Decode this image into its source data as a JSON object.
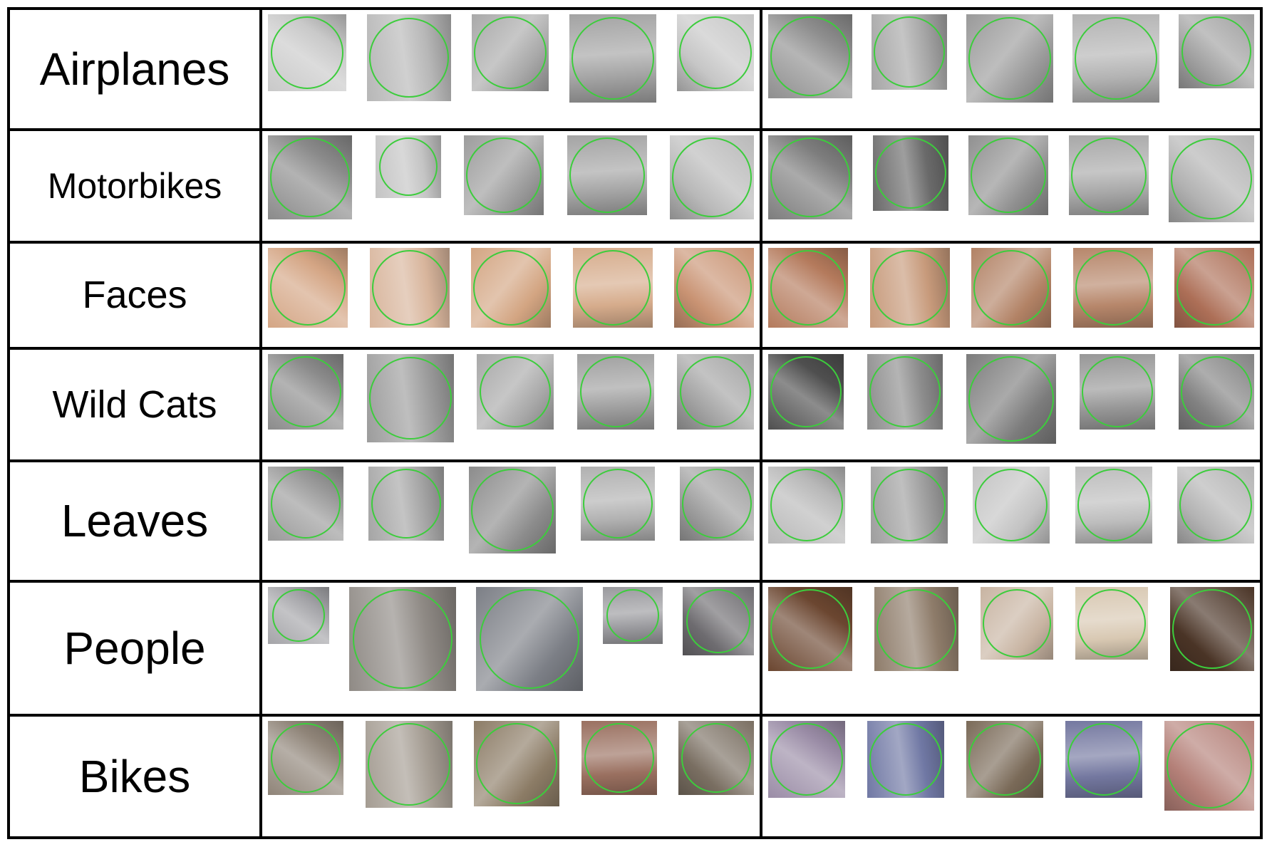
{
  "circle_color": "#3ccd3c",
  "rows": [
    {
      "label": "Airplanes",
      "left_palette": [
        "#c9c9c9",
        "#b7b7b7",
        "#a9a9a9",
        "#a3a3a3",
        "#c6c6c6"
      ],
      "right_palette": [
        "#8e8e8e",
        "#a6a6a6",
        "#9a9a9a",
        "#b3b3b3",
        "#a0a0a0"
      ]
    },
    {
      "label": "Motorbikes",
      "left_palette": [
        "#8a8a8a",
        "#c4c4c4",
        "#9c9c9c",
        "#a4a4a4",
        "#b9b9b9"
      ],
      "right_palette": [
        "#7d7d7d",
        "#6a6a6a",
        "#909090",
        "#a8a8a8",
        "#b2b2b2"
      ]
    },
    {
      "label": "Faces",
      "left_palette": [
        "#d4a584",
        "#d8b59c",
        "#d3a582",
        "#d6ac8c",
        "#c99373"
      ],
      "right_palette": [
        "#b47a5c",
        "#c79a7b",
        "#b28265",
        "#b7876b",
        "#ad6f57"
      ]
    },
    {
      "label": "Wild Cats",
      "left_palette": [
        "#8b8b8b",
        "#9c9c9c",
        "#a8a8a8",
        "#9f9f9f",
        "#a3a3a3"
      ],
      "right_palette": [
        "#4f4f4f",
        "#8c8c8c",
        "#7c7c7c",
        "#979797",
        "#828282"
      ]
    },
    {
      "label": "Leaves",
      "left_palette": [
        "#9a9a9a",
        "#a5a5a5",
        "#8c8c8c",
        "#b1b1b1",
        "#9d9d9d"
      ],
      "right_palette": [
        "#b8b8b8",
        "#9e9e9e",
        "#c3c3c3",
        "#bdbdbd",
        "#b4b4b4"
      ]
    },
    {
      "label": "People",
      "left_palette": [
        "#a4a4a8",
        "#8f8a85",
        "#7c7f86",
        "#9a9a9e",
        "#6e6c70"
      ],
      "right_palette": [
        "#6b4630",
        "#8e7c6a",
        "#c8b4a2",
        "#d8c8b2",
        "#4a3426"
      ]
    },
    {
      "label": "Bikes",
      "left_palette": [
        "#8f8478",
        "#a49c92",
        "#8c7c66",
        "#9a7060",
        "#7a6f62"
      ],
      "right_palette": [
        "#9a8ca6",
        "#7078a4",
        "#7a6a58",
        "#7478a0",
        "#b48078"
      ]
    }
  ]
}
